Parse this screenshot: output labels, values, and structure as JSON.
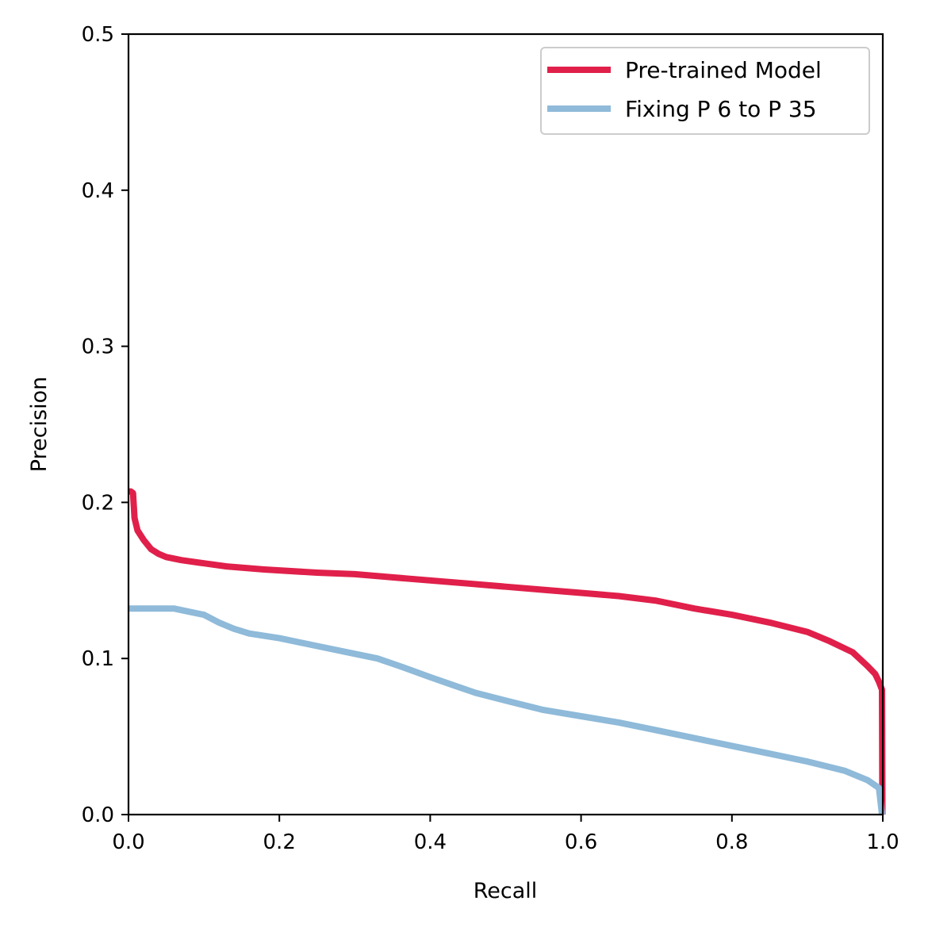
{
  "chart_data": {
    "type": "line",
    "title": "",
    "xlabel": "Recall",
    "ylabel": "Precision",
    "xlim": [
      0.0,
      1.0
    ],
    "ylim": [
      0.0,
      0.5
    ],
    "x_ticks": [
      "0.0",
      "0.2",
      "0.4",
      "0.6",
      "0.8",
      "1.0"
    ],
    "y_ticks": [
      "0.0",
      "0.1",
      "0.2",
      "0.3",
      "0.4",
      "0.5"
    ],
    "grid": false,
    "legend_position": "top-right",
    "series": [
      {
        "name": "Pre-trained Model",
        "color": "#e0204a",
        "points": [
          [
            0.0,
            0.207
          ],
          [
            0.003,
            0.207
          ],
          [
            0.006,
            0.206
          ],
          [
            0.008,
            0.19
          ],
          [
            0.012,
            0.182
          ],
          [
            0.02,
            0.176
          ],
          [
            0.03,
            0.17
          ],
          [
            0.04,
            0.167
          ],
          [
            0.05,
            0.165
          ],
          [
            0.07,
            0.163
          ],
          [
            0.1,
            0.161
          ],
          [
            0.13,
            0.159
          ],
          [
            0.18,
            0.157
          ],
          [
            0.25,
            0.155
          ],
          [
            0.3,
            0.154
          ],
          [
            0.35,
            0.152
          ],
          [
            0.4,
            0.15
          ],
          [
            0.45,
            0.148
          ],
          [
            0.5,
            0.146
          ],
          [
            0.55,
            0.144
          ],
          [
            0.6,
            0.142
          ],
          [
            0.65,
            0.14
          ],
          [
            0.7,
            0.137
          ],
          [
            0.75,
            0.132
          ],
          [
            0.8,
            0.128
          ],
          [
            0.85,
            0.123
          ],
          [
            0.9,
            0.117
          ],
          [
            0.93,
            0.111
          ],
          [
            0.96,
            0.104
          ],
          [
            0.98,
            0.095
          ],
          [
            0.99,
            0.09
          ],
          [
            0.995,
            0.085
          ],
          [
            0.999,
            0.08
          ],
          [
            0.9995,
            0.0
          ]
        ]
      },
      {
        "name": "Fixing P 6 to P 35",
        "color": "#8fbad9",
        "points": [
          [
            0.0,
            0.132
          ],
          [
            0.02,
            0.132
          ],
          [
            0.06,
            0.132
          ],
          [
            0.08,
            0.13
          ],
          [
            0.1,
            0.128
          ],
          [
            0.12,
            0.123
          ],
          [
            0.14,
            0.119
          ],
          [
            0.16,
            0.116
          ],
          [
            0.2,
            0.113
          ],
          [
            0.25,
            0.108
          ],
          [
            0.3,
            0.103
          ],
          [
            0.33,
            0.1
          ],
          [
            0.36,
            0.095
          ],
          [
            0.4,
            0.088
          ],
          [
            0.43,
            0.083
          ],
          [
            0.46,
            0.078
          ],
          [
            0.5,
            0.073
          ],
          [
            0.55,
            0.067
          ],
          [
            0.6,
            0.063
          ],
          [
            0.65,
            0.059
          ],
          [
            0.7,
            0.054
          ],
          [
            0.75,
            0.049
          ],
          [
            0.8,
            0.044
          ],
          [
            0.85,
            0.039
          ],
          [
            0.9,
            0.034
          ],
          [
            0.95,
            0.028
          ],
          [
            0.98,
            0.022
          ],
          [
            0.995,
            0.017
          ],
          [
            0.999,
            0.0
          ]
        ]
      }
    ]
  }
}
